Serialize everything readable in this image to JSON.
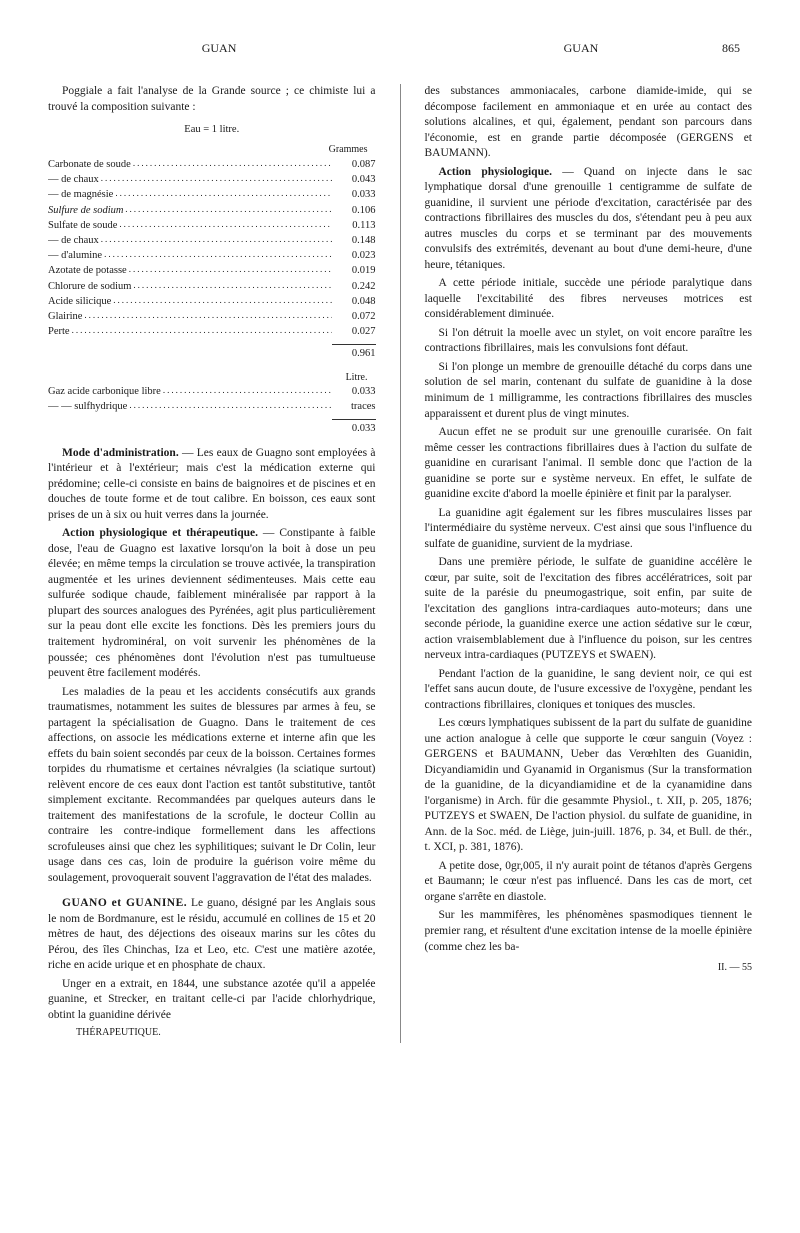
{
  "header": {
    "left": "GUAN",
    "right": "GUAN",
    "pagenum": "865"
  },
  "left": {
    "p1": "Poggiale a fait l'analyse de la Grande source ; ce chimiste lui a trouvé la composition suivante :",
    "table1": {
      "title": "Eau = 1 litre.",
      "subhead": "Grammes",
      "rows": [
        {
          "l": "Carbonate de soude",
          "v": "0.087"
        },
        {
          "l": "—    de chaux",
          "v": "0.043"
        },
        {
          "l": "—    de magnésie",
          "v": "0.033"
        },
        {
          "l": "Sulfure de sodium",
          "v": "0.106"
        },
        {
          "l": "Sulfate de soude",
          "v": "0.113"
        },
        {
          "l": "—    de chaux",
          "v": "0.148"
        },
        {
          "l": "—    d'alumine",
          "v": "0.023"
        },
        {
          "l": "Azotate de potasse",
          "v": "0.019"
        },
        {
          "l": "Chlorure de sodium",
          "v": "0.242"
        },
        {
          "l": "Acide silicique",
          "v": "0.048"
        },
        {
          "l": "Glairine",
          "v": "0.072"
        },
        {
          "l": "Perte",
          "v": "0.027"
        }
      ],
      "total": "0.961"
    },
    "table2": {
      "subhead": "Litre.",
      "rows": [
        {
          "l": "Gaz acide carbonique libre",
          "v": "0.033"
        },
        {
          "l": "—  — sulfhydrique",
          "v": "traces"
        }
      ],
      "total": "0.033"
    },
    "p2_head": "Mode d'administration.",
    "p2": " — Les eaux de Guagno sont employées à l'intérieur et à l'extérieur; mais c'est la médication externe qui prédomine; celle-ci consiste en bains de baignoires et de piscines et en douches de toute forme et de tout calibre. En boisson, ces eaux sont prises de un à six ou huit verres dans la journée.",
    "p3_head": "Action physiologique et thérapeutique.",
    "p3": " — Constipante à faible dose, l'eau de Guagno est laxative lorsqu'on la boit à dose un peu élevée; en même temps la circulation se trouve activée, la transpiration augmentée et les urines deviennent sédimenteuses. Mais cette eau sulfurée sodique chaude, faiblement minéralisée par rapport à la plupart des sources analogues des Pyrénées, agit plus particulièrement sur la peau dont elle excite les fonctions. Dès les premiers jours du traitement hydrominéral, on voit survenir les phénomènes de la poussée; ces phénomènes dont l'évolution n'est pas tumultueuse peuvent être facilement modérés.",
    "p4": "Les maladies de la peau et les accidents consécutifs aux grands traumatismes, notamment les suites de blessures par armes à feu, se partagent la spécialisation de Guagno. Dans le traitement de ces affections, on associe les médications externe et interne afin que les effets du bain soient secondés par ceux de la boisson. Certaines formes torpides du rhumatisme et certaines névralgies (la sciatique surtout) relèvent encore de ces eaux dont l'action est tantôt substitutive, tantôt simplement excitante. Recommandées par quelques auteurs dans le traitement des manifestations de la scrofule, le docteur Collin au contraire les contre-indique formellement dans les affections scrofuleuses ainsi que chez les syphilitiques; suivant le Dr Colin, leur usage dans ces cas, loin de produire la guérison voire même du soulagement, provoquerait souvent l'aggravation de l'état des malades.",
    "p5_head": "GUANO et GUANINE.",
    "p5": " Le guano, désigné par les Anglais sous le nom de Bordmanure, est le résidu, accumulé en collines de 15 et 20 mètres de haut, des déjections des oiseaux marins sur les côtes du Pérou, des îles Chinchas, Iza et Leo, etc. C'est une matière azotée, riche en acide urique et en phosphate de chaux.",
    "p6": "Unger en a extrait, en 1844, une substance azotée qu'il a appelée guanine, et Strecker, en traitant celle-ci par l'acide chlorhydrique, obtint la guanidine dérivée",
    "footer": "THÉRAPEUTIQUE."
  },
  "right": {
    "p1": "des substances ammoniacales, carbone diamide-imide, qui se décompose facilement en ammoniaque et en urée au contact des solutions alcalines, et qui, également, pendant son parcours dans l'économie, est en grande partie décomposée (GERGENS et BAUMANN).",
    "p2_head": "Action physiologique.",
    "p2": " — Quand on injecte dans le sac lymphatique dorsal d'une grenouille 1 centigramme de sulfate de guanidine, il survient une période d'excitation, caractérisée par des contractions fibrillaires des muscles du dos, s'étendant peu à peu aux autres muscles du corps et se terminant par des mouvements convulsifs des extrémités, devenant au bout d'une demi-heure, d'une heure, tétaniques.",
    "p3": "A cette période initiale, succède une période paralytique dans laquelle l'excitabilité des fibres nerveuses motrices est considérablement diminuée.",
    "p4": "Si l'on détruit la moelle avec un stylet, on voit encore paraître les contractions fibrillaires, mais les convulsions font défaut.",
    "p5": "Si l'on plonge un membre de grenouille détaché du corps dans une solution de sel marin, contenant du sulfate de guanidine à la dose minimum de 1 milligramme, les contractions fibrillaires des muscles apparaissent et durent plus de vingt minutes.",
    "p6": "Aucun effet ne se produit sur une grenouille curarisée. On fait même cesser les contractions fibrillaires dues à l'action du sulfate de guanidine en curarisant l'animal. Il semble donc que l'action de la guanidine se porte sur e système nerveux. En effet, le sulfate de guanidine excite d'abord la moelle épinière et finit par la paralyser.",
    "p7": "La guanidine agit également sur les fibres musculaires lisses par l'intermédiaire du système nerveux. C'est ainsi que sous l'influence du sulfate de guanidine, survient de la mydriase.",
    "p8": "Dans une première période, le sulfate de guanidine accélère le cœur, par suite, soit de l'excitation des fibres accélératrices, soit par suite de la parésie du pneumogastrique, soit enfin, par suite de l'excitation des ganglions intra-cardiaques auto-moteurs; dans une seconde période, la guanidine exerce une action sédative sur le cœur, action vraisemblablement due à l'influence du poison, sur les centres nerveux intra-cardiaques (PUTZEYS et SWAEN).",
    "p9": "Pendant l'action de la guanidine, le sang devient noir, ce qui est l'effet sans aucun doute, de l'usure excessive de l'oxygène, pendant les contractions fibrillaires, cloniques et toniques des muscles.",
    "p10": "Les cœurs lymphatiques subissent de la part du sulfate de guanidine une action analogue à celle que supporte le cœur sanguin (Voyez : GERGENS et BAUMANN, Ueber das Verœhlten des Guanidin, Dicyandiamidin und Gyanamid in Organismus (Sur la transformation de la guanidine, de la dicyandiamidine et de la cyanamidine dans l'organisme) in Arch. für die gesammte Physiol., t. XII, p. 205, 1876; PUTZEYS et SWAEN, De l'action physiol. du sulfate de guanidine, in Ann. de la Soc. méd. de Liège, juin-juill. 1876, p. 34, et Bull. de thér., t. XCI, p. 381, 1876).",
    "p11": "A petite dose, 0gr,005, il n'y aurait point de tétanos d'après Gergens et Baumann; le cœur n'est pas influencé. Dans les cas de mort, cet organe s'arrête en diastole.",
    "p12": "Sur les mammifères, les phénomènes spasmodiques tiennent le premier rang, et résultent d'une excitation intense de la moelle épinière (comme chez les ba-",
    "sig": "II. — 55"
  }
}
